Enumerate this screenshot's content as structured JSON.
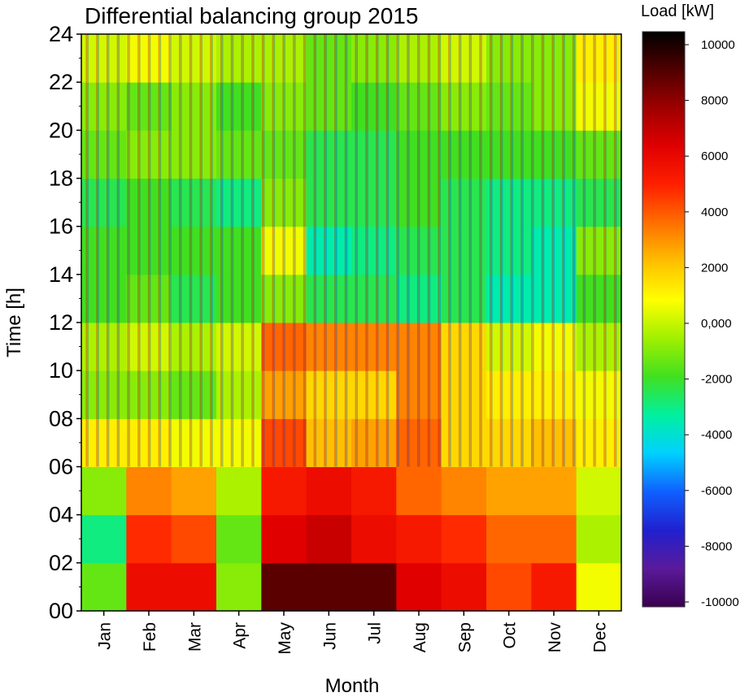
{
  "chart_data": {
    "type": "heatmap",
    "title": "Differential balancing group 2015",
    "xlabel": "Month",
    "ylabel": "Time [h]",
    "x_categories": [
      "Jan",
      "Feb",
      "Mar",
      "Apr",
      "May",
      "Jun",
      "Jul",
      "Aug",
      "Sep",
      "Oct",
      "Nov",
      "Dec"
    ],
    "y_ticks": [
      "00",
      "02",
      "04",
      "06",
      "08",
      "10",
      "12",
      "14",
      "16",
      "18",
      "20",
      "22",
      "24"
    ],
    "ylim": [
      0,
      24
    ],
    "colorbar": {
      "title": "Load [kW]",
      "ticks": [
        "10000",
        "8000",
        "6000",
        "4000",
        "2000",
        "0,000",
        "-2000",
        "-4000",
        "-6000",
        "-8000",
        "-10000"
      ],
      "range": [
        -10000,
        10000
      ],
      "colors": [
        "#3a0050",
        "#5a1a9a",
        "#2020d0",
        "#1060ff",
        "#00d0ff",
        "#00f0a0",
        "#40e020",
        "#a0f000",
        "#ffff00",
        "#ffc000",
        "#ff7000",
        "#ff2000",
        "#e00000",
        "#a00000",
        "#500000",
        "#000000"
      ]
    },
    "z_monthly_kw": [
      [
        -1500,
        5500,
        5500,
        -1000,
        8500,
        8500,
        8500,
        6000,
        5500,
        4000,
        5000,
        500
      ],
      [
        -3000,
        4500,
        4000,
        -1500,
        6000,
        6500,
        5500,
        5000,
        4500,
        3500,
        3500,
        -500
      ],
      [
        -1000,
        3000,
        2500,
        -500,
        5000,
        5500,
        5000,
        3500,
        3000,
        2500,
        2500,
        0
      ],
      [
        1000,
        1000,
        500,
        500,
        4000,
        2000,
        2500,
        3500,
        1500,
        1500,
        2000,
        1000
      ],
      [
        -1000,
        -1000,
        -1500,
        -500,
        2500,
        1500,
        1500,
        3000,
        1500,
        1000,
        1000,
        500
      ],
      [
        -500,
        0,
        -500,
        0,
        3500,
        3000,
        3000,
        3000,
        1500,
        0,
        500,
        -500
      ],
      [
        -2000,
        -1500,
        -2500,
        -2000,
        -1000,
        -2500,
        -2500,
        -3000,
        -2500,
        -3500,
        -3500,
        -2000
      ],
      [
        -2000,
        -2000,
        -2000,
        -2000,
        500,
        -3500,
        -3000,
        -2500,
        -2500,
        -3000,
        -3500,
        -1000
      ],
      [
        -2500,
        -2000,
        -2500,
        -3000,
        -1000,
        -2500,
        -2500,
        -2000,
        -2500,
        -3000,
        -3000,
        -2500
      ],
      [
        -1500,
        -1000,
        -1000,
        -1500,
        -1500,
        -2500,
        -2500,
        -2000,
        -2000,
        -2000,
        -2000,
        -1500
      ],
      [
        -1000,
        -1500,
        -1000,
        -2000,
        -1000,
        -1500,
        -2000,
        -1500,
        -1000,
        -1500,
        -1000,
        500
      ],
      [
        0,
        500,
        0,
        -500,
        -500,
        -1500,
        -1000,
        -500,
        0,
        -1000,
        -1000,
        1000
      ]
    ]
  }
}
